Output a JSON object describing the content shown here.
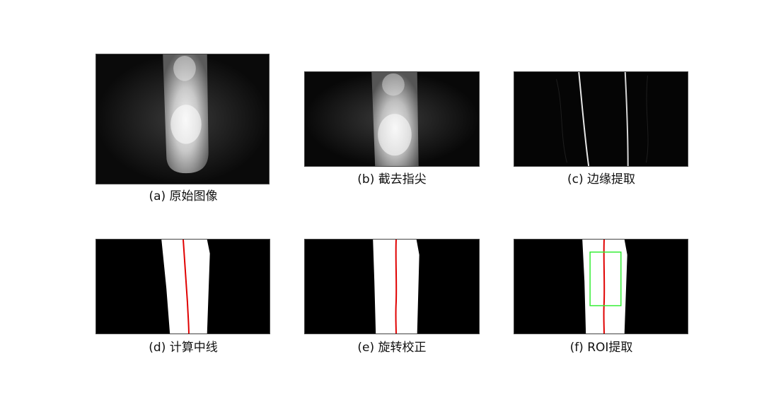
{
  "figure": {
    "panels": [
      {
        "id": "a",
        "caption": "(a) 原始图像"
      },
      {
        "id": "b",
        "caption": "(b) 截去指尖"
      },
      {
        "id": "c",
        "caption": "(c) 边缘提取"
      },
      {
        "id": "d",
        "caption": "(d) 计算中线"
      },
      {
        "id": "e",
        "caption": "(e) 旋转校正"
      },
      {
        "id": "f",
        "caption": "(f) ROI提取"
      }
    ],
    "colors": {
      "background": "#000000",
      "finger_mask": "#ffffff",
      "midline": "#e00000",
      "roi_box": "#33ee33"
    }
  }
}
